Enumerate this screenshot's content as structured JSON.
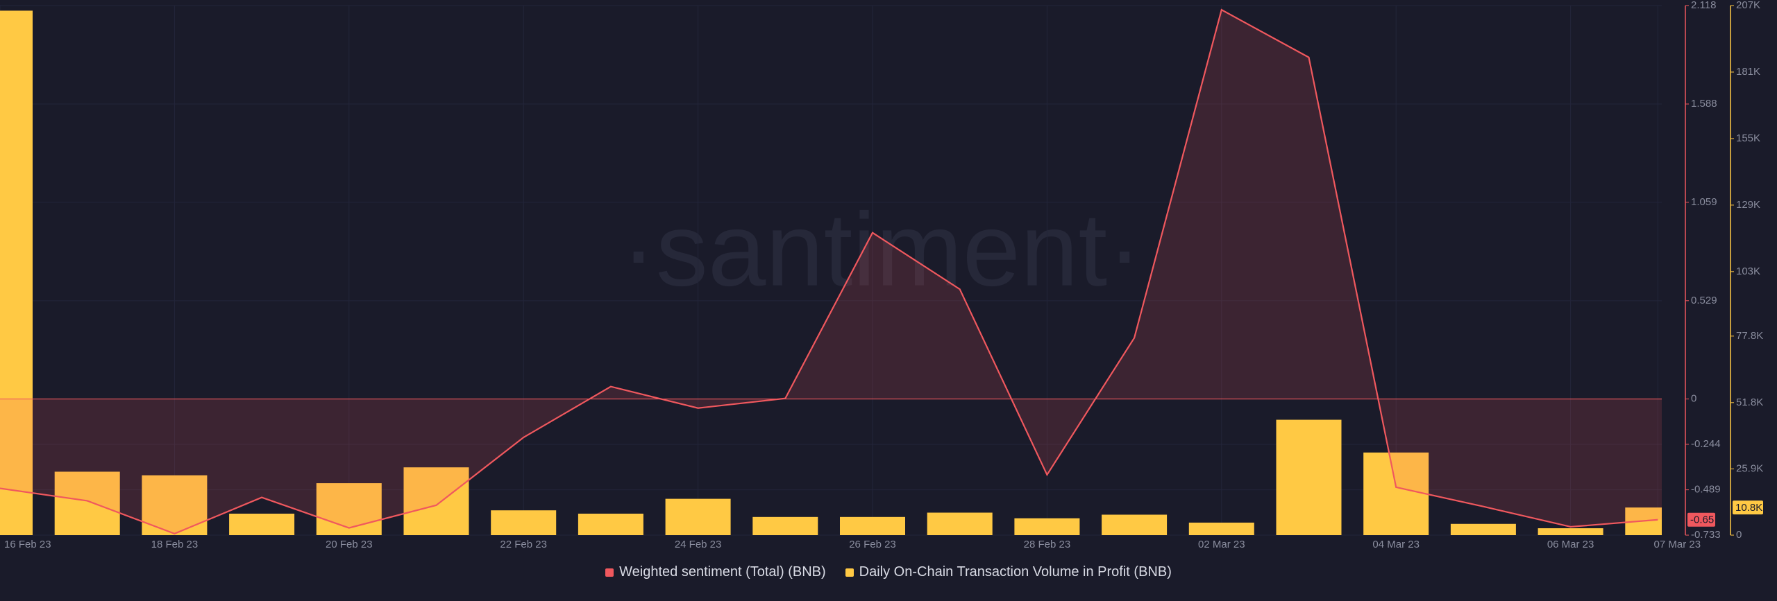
{
  "chart_data": {
    "type": "bar-line",
    "watermark": "·santiment·",
    "categories": [
      "16 Feb 23",
      null,
      "18 Feb 23",
      null,
      "20 Feb 23",
      null,
      "22 Feb 23",
      null,
      "24 Feb 23",
      null,
      "26 Feb 23",
      null,
      "28 Feb 23",
      null,
      "02 Mar 23",
      null,
      "04 Mar 23",
      null,
      "06 Mar 23",
      "07 Mar 23"
    ],
    "series": [
      {
        "name": "Weighted sentiment (Total) (BNB)",
        "color": "#f0585e",
        "kind": "area-line",
        "axis": "y",
        "values": [
          -0.481,
          -0.548,
          -0.725,
          -0.53,
          -0.694,
          -0.572,
          -0.207,
          0.067,
          -0.049,
          0.003,
          0.895,
          0.591,
          -0.408,
          0.329,
          2.095,
          1.839,
          -0.475,
          -0.579,
          -0.688,
          -0.65
        ],
        "value_labels": [
          null,
          null,
          null,
          null,
          null,
          null,
          null,
          null,
          null,
          null,
          null,
          null,
          null,
          null,
          null,
          null,
          null,
          null,
          null,
          "-0.65"
        ]
      },
      {
        "name": "Daily On-Chain Transaction Volume in Profit (BNB)",
        "color": "#ffc944",
        "kind": "bar",
        "axis": "y2",
        "values": [
          205000,
          24800,
          23400,
          8400,
          20300,
          26500,
          9700,
          8400,
          14200,
          7100,
          7100,
          8800,
          6600,
          8000,
          4900,
          45100,
          32300,
          4400,
          2700,
          10800
        ],
        "value_labels": [
          null,
          null,
          null,
          null,
          null,
          null,
          null,
          null,
          null,
          null,
          null,
          null,
          null,
          null,
          null,
          null,
          null,
          null,
          null,
          "10.8K"
        ]
      }
    ],
    "ylim": [
      -0.733,
      2.118
    ],
    "yticks": [
      -0.733,
      -0.489,
      -0.244,
      0,
      0.529,
      1.059,
      1.588,
      2.118
    ],
    "y2lim": [
      0,
      207000
    ],
    "y2ticks": [
      0,
      {
        "value": 25900,
        "label": "25.9K"
      },
      {
        "value": 51800,
        "label": "51.8K"
      },
      {
        "value": 77800,
        "label": "77.8K"
      },
      {
        "value": 103000,
        "label": "103K"
      },
      {
        "value": 129000,
        "label": "129K"
      },
      {
        "value": 155000,
        "label": "155K"
      },
      {
        "value": 181000,
        "label": "181K"
      },
      {
        "value": 207000,
        "label": "207K"
      }
    ],
    "grid": true
  }
}
